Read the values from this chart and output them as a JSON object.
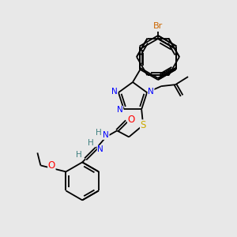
{
  "bg_color": "#e8e8e8",
  "bond_color": "#000000",
  "atom_colors": {
    "N": "#0000ff",
    "S": "#ccaa00",
    "O": "#ff0000",
    "Br": "#cc6600",
    "H": "#408080",
    "C": "#000000"
  },
  "lw": 1.3,
  "fs": 7.5
}
